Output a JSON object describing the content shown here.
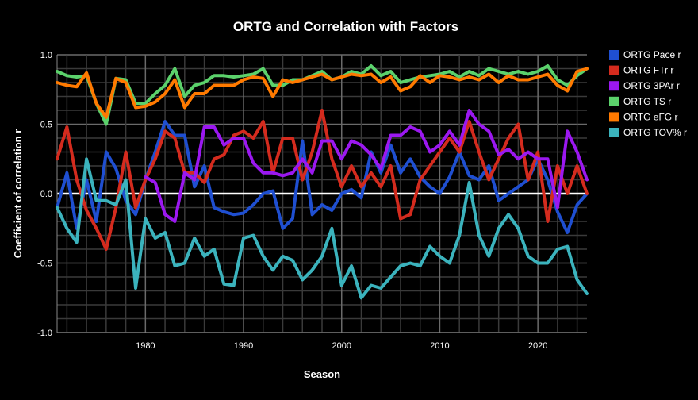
{
  "chart_data": {
    "type": "line",
    "title": "ORTG and Correlation with Factors",
    "xlabel": "Season",
    "ylabel": "Coefficient of correlation r",
    "xlim": [
      1971,
      2025
    ],
    "ylim": [
      -1.0,
      1.0
    ],
    "x_ticks": [
      1980,
      1990,
      2000,
      2010,
      2020
    ],
    "x_tick_labels": [
      "1980",
      "1990",
      "2000",
      "2010",
      "2020"
    ],
    "y_ticks": [
      -1.0,
      -0.5,
      0.0,
      0.5,
      1.0
    ],
    "y_tick_labels": [
      "-1.0",
      "-0.5",
      "0.0",
      "0.5",
      "1.0"
    ],
    "grid": true,
    "legend_position": "right",
    "x": [
      1971,
      1972,
      1973,
      1974,
      1975,
      1976,
      1977,
      1978,
      1979,
      1980,
      1981,
      1982,
      1983,
      1984,
      1985,
      1986,
      1987,
      1988,
      1989,
      1990,
      1991,
      1992,
      1993,
      1994,
      1995,
      1996,
      1997,
      1998,
      1999,
      2000,
      2001,
      2002,
      2003,
      2004,
      2005,
      2006,
      2007,
      2008,
      2009,
      2010,
      2011,
      2012,
      2013,
      2014,
      2015,
      2016,
      2017,
      2018,
      2019,
      2020,
      2021,
      2022,
      2023,
      2024,
      2025
    ],
    "series": [
      {
        "name": "ORTG Pace r",
        "color": "#1f4fd1",
        "values": [
          -0.1,
          0.15,
          -0.25,
          0.1,
          -0.2,
          0.3,
          0.18,
          -0.05,
          -0.15,
          0.1,
          0.3,
          0.52,
          0.42,
          0.42,
          0.05,
          0.2,
          -0.1,
          -0.13,
          -0.15,
          -0.14,
          -0.08,
          0.0,
          0.02,
          -0.25,
          -0.18,
          0.38,
          -0.15,
          -0.08,
          -0.12,
          0.0,
          0.03,
          -0.03,
          0.3,
          0.15,
          0.35,
          0.15,
          0.25,
          0.12,
          0.05,
          0.0,
          0.12,
          0.3,
          0.13,
          0.1,
          0.2,
          -0.05,
          0.0,
          0.05,
          0.1,
          0.25,
          0.1,
          -0.13,
          -0.28,
          -0.08,
          0.0
        ]
      },
      {
        "name": "ORTG FTr r",
        "color": "#d42b1e",
        "values": [
          0.25,
          0.48,
          0.1,
          -0.12,
          -0.25,
          -0.4,
          -0.1,
          0.3,
          -0.1,
          0.1,
          0.25,
          0.45,
          0.4,
          0.15,
          0.15,
          0.08,
          0.25,
          0.28,
          0.42,
          0.45,
          0.4,
          0.52,
          0.15,
          0.4,
          0.4,
          0.1,
          0.3,
          0.6,
          0.25,
          0.05,
          0.2,
          0.05,
          0.15,
          0.05,
          0.2,
          -0.18,
          -0.15,
          0.1,
          0.2,
          0.3,
          0.4,
          0.3,
          0.52,
          0.3,
          0.1,
          0.25,
          0.4,
          0.5,
          0.1,
          0.3,
          -0.2,
          0.2,
          0.0,
          0.2,
          0.0
        ]
      },
      {
        "name": "ORTG 3PAr r",
        "color": "#9b18f0",
        "values": [
          null,
          null,
          null,
          null,
          null,
          null,
          null,
          null,
          null,
          0.12,
          0.08,
          -0.15,
          -0.2,
          0.15,
          0.1,
          0.48,
          0.48,
          0.35,
          0.4,
          0.4,
          0.22,
          0.15,
          0.15,
          0.13,
          0.15,
          0.25,
          0.15,
          0.38,
          0.38,
          0.25,
          0.38,
          0.35,
          0.28,
          0.18,
          0.42,
          0.42,
          0.48,
          0.45,
          0.3,
          0.35,
          0.45,
          0.35,
          0.6,
          0.5,
          0.45,
          0.28,
          0.32,
          0.25,
          0.3,
          0.25,
          0.25,
          -0.1,
          0.45,
          0.3,
          0.1
        ]
      },
      {
        "name": "ORTG TS r",
        "color": "#5bd16b",
        "values": [
          0.88,
          0.85,
          0.84,
          0.85,
          0.65,
          0.5,
          0.83,
          0.82,
          0.65,
          0.65,
          0.72,
          0.78,
          0.9,
          0.7,
          0.78,
          0.8,
          0.85,
          0.85,
          0.84,
          0.85,
          0.86,
          0.9,
          0.78,
          0.78,
          0.82,
          0.82,
          0.85,
          0.88,
          0.82,
          0.84,
          0.88,
          0.86,
          0.92,
          0.85,
          0.88,
          0.8,
          0.82,
          0.84,
          0.85,
          0.86,
          0.88,
          0.84,
          0.88,
          0.85,
          0.9,
          0.88,
          0.86,
          0.88,
          0.86,
          0.88,
          0.92,
          0.82,
          0.78,
          0.85,
          0.9
        ]
      },
      {
        "name": "ORTG eFG r",
        "color": "#ff7a00",
        "values": [
          0.8,
          0.78,
          0.77,
          0.87,
          0.65,
          0.55,
          0.83,
          0.8,
          0.62,
          0.63,
          0.66,
          0.72,
          0.82,
          0.62,
          0.72,
          0.72,
          0.78,
          0.78,
          0.78,
          0.82,
          0.84,
          0.83,
          0.7,
          0.82,
          0.8,
          0.82,
          0.84,
          0.86,
          0.82,
          0.84,
          0.86,
          0.85,
          0.86,
          0.8,
          0.84,
          0.74,
          0.77,
          0.85,
          0.8,
          0.85,
          0.84,
          0.82,
          0.84,
          0.82,
          0.86,
          0.8,
          0.85,
          0.82,
          0.82,
          0.84,
          0.86,
          0.78,
          0.74,
          0.88,
          0.9
        ]
      },
      {
        "name": "ORTG TOV% r",
        "color": "#3bb3bd",
        "values": [
          -0.1,
          -0.25,
          -0.35,
          0.25,
          -0.05,
          -0.05,
          -0.08,
          0.1,
          -0.68,
          -0.18,
          -0.32,
          -0.28,
          -0.52,
          -0.5,
          -0.32,
          -0.45,
          -0.4,
          -0.65,
          -0.66,
          -0.32,
          -0.3,
          -0.45,
          -0.55,
          -0.45,
          -0.48,
          -0.62,
          -0.55,
          -0.45,
          -0.25,
          -0.66,
          -0.52,
          -0.75,
          -0.66,
          -0.68,
          -0.6,
          -0.52,
          -0.5,
          -0.52,
          -0.38,
          -0.45,
          -0.5,
          -0.3,
          0.08,
          -0.3,
          -0.45,
          -0.25,
          -0.15,
          -0.25,
          -0.45,
          -0.5,
          -0.5,
          -0.4,
          -0.38,
          -0.62,
          -0.72
        ]
      }
    ]
  }
}
